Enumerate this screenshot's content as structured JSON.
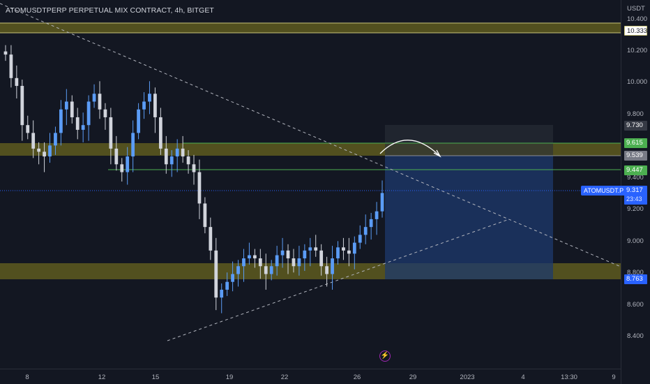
{
  "header": {
    "title": "ATOMUSDTPERP PERPETUAL MIX CONTRACT, 4h, BITGET"
  },
  "price_axis": {
    "currency": "USDT",
    "ticks": [
      "10.400",
      "10.200",
      "10.000",
      "9.800",
      "9.400",
      "9.200",
      "9.000",
      "8.800",
      "8.600",
      "8.400"
    ]
  },
  "price_labels": {
    "resistance_top": "10.333",
    "target_box_top": "9.730",
    "green_line_upper": "9.615",
    "target_price": "9.539",
    "green_line_lower": "9.447",
    "support_zone": "8.763"
  },
  "last_price": {
    "symbol": "ATOMUSDT.P",
    "price": "9.317",
    "countdown": "23:43"
  },
  "time_axis": {
    "ticks": [
      "8",
      "12",
      "15",
      "19",
      "22",
      "26",
      "29",
      "2023",
      "4",
      "13:30",
      "9"
    ]
  },
  "icons": {
    "replay": "lightning-replay-icon"
  },
  "colors": {
    "background": "#131722",
    "zone": "#5e5a1f",
    "green_line": "#4caf50",
    "candle_up": "#5b9cf6",
    "candle_down": "#d1d4dc",
    "target_box": "#1e3a6e",
    "accent": "#2962ff"
  },
  "chart_data": {
    "type": "candlestick",
    "title": "ATOMUSDTPERP PERPETUAL MIX CONTRACT, 4h, BITGET",
    "ylim": [
      8.25,
      10.45
    ],
    "horizontal_zones": [
      {
        "from": 10.3,
        "to": 10.35
      },
      {
        "from": 9.52,
        "to": 9.6
      },
      {
        "from": 8.76,
        "to": 8.85
      }
    ],
    "horizontal_lines": [
      9.615,
      9.447
    ],
    "close_series": [
      10.2,
      10.05,
      10.0,
      9.75,
      9.7,
      9.6,
      9.58,
      9.55,
      9.62,
      9.7,
      9.85,
      9.9,
      9.8,
      9.72,
      9.75,
      9.9,
      9.95,
      9.85,
      9.8,
      9.6,
      9.5,
      9.45,
      9.55,
      9.7,
      9.85,
      9.9,
      9.95,
      9.8,
      9.6,
      9.5,
      9.55,
      9.6,
      9.55,
      9.5,
      9.45,
      9.25,
      9.1,
      8.95,
      8.65,
      8.7,
      8.75,
      8.8,
      8.85,
      8.9,
      8.92,
      8.9,
      8.85,
      8.8,
      8.85,
      8.92,
      8.95,
      8.9,
      8.85,
      8.9,
      8.95,
      8.97,
      8.95,
      8.85,
      8.8,
      8.9,
      8.97,
      8.95,
      8.93,
      9.0,
      9.05,
      9.1,
      9.15,
      9.2,
      9.317
    ]
  }
}
